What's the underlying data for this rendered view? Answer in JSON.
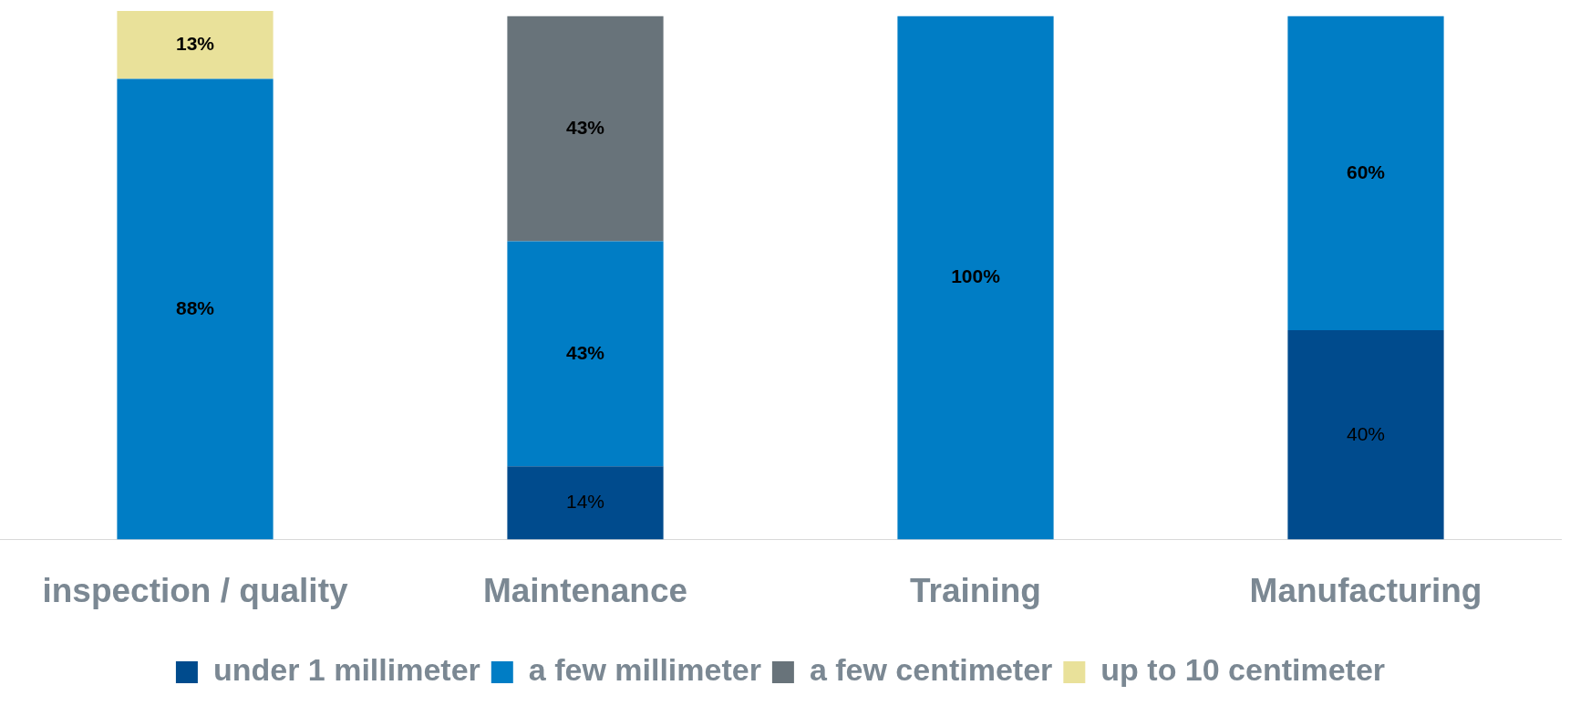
{
  "chart_data": {
    "type": "bar",
    "stacked": true,
    "categories": [
      "inspection / quality",
      "Maintenance",
      "Training",
      "Manufacturing"
    ],
    "series": [
      {
        "name": "under 1 millimeter",
        "color": "#004b8d",
        "values": [
          null,
          14,
          null,
          40
        ],
        "value_labels": [
          null,
          "14%",
          null,
          "40%"
        ]
      },
      {
        "name": "a few millimeter",
        "color": "#007dc5",
        "values": [
          88,
          43,
          100,
          60
        ],
        "value_labels": [
          "88%",
          "43%",
          "100%",
          "60%"
        ]
      },
      {
        "name": "a few centimeter",
        "color": "#68737a",
        "values": [
          null,
          43,
          null,
          null
        ],
        "value_labels": [
          null,
          "43%",
          null,
          null
        ]
      },
      {
        "name": "up to 10 centimeter",
        "color": "#e9e19a",
        "values": [
          13,
          null,
          null,
          null
        ],
        "value_labels": [
          "13%",
          null,
          null,
          null
        ]
      }
    ],
    "tick_labels": "x",
    "legend": "bottom"
  }
}
